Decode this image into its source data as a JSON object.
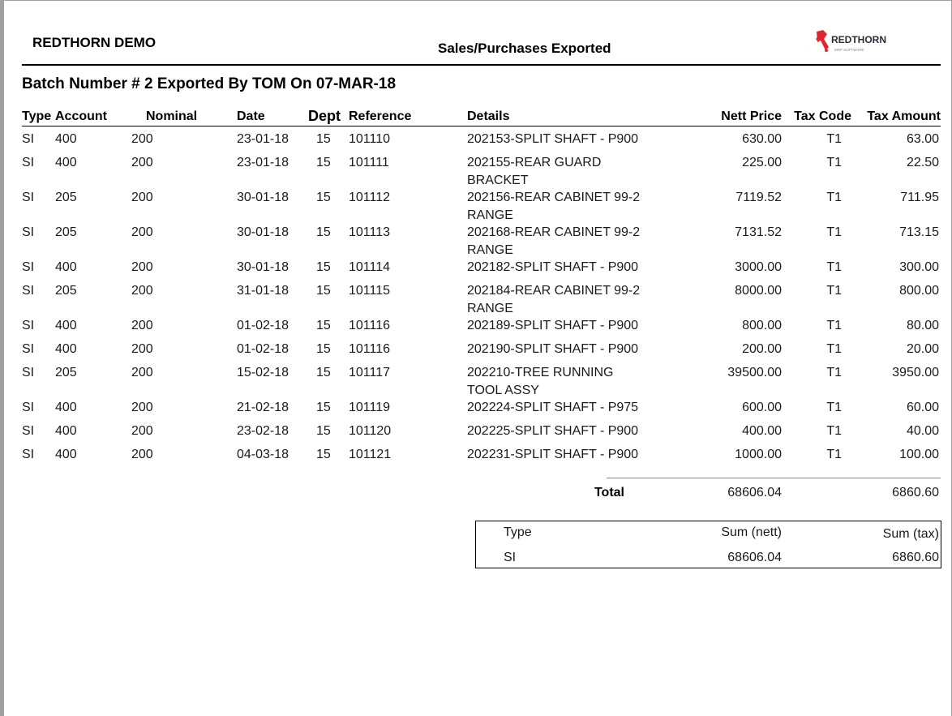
{
  "header": {
    "company": "REDTHORN DEMO",
    "report_title": "Sales/Purchases Exported",
    "logo_text": "REDTHORN",
    "logo_sub": "MRP SOFTWARE",
    "brand_color": "#e0262f"
  },
  "batch_title": "Batch Number # 2 Exported By TOM On 07-MAR-18",
  "columns": [
    "Type",
    "Account",
    "Nominal",
    "Date",
    "Dept",
    "Reference",
    "Details",
    "Nett Price",
    "Tax Code",
    "Tax Amount"
  ],
  "rows": [
    [
      "SI",
      "400",
      "200",
      "23-01-18",
      "15",
      "101110",
      "202153-SPLIT SHAFT - P900",
      "630.00",
      "T1",
      "63.00"
    ],
    [
      "SI",
      "400",
      "200",
      "23-01-18",
      "15",
      "101111",
      "202155-REAR GUARD BRACKET",
      "225.00",
      "T1",
      "22.50"
    ],
    [
      "SI",
      "205",
      "200",
      "30-01-18",
      "15",
      "101112",
      "202156-REAR CABINET 99-2 RANGE",
      "7119.52",
      "T1",
      "711.95"
    ],
    [
      "SI",
      "205",
      "200",
      "30-01-18",
      "15",
      "101113",
      "202168-REAR CABINET 99-2 RANGE",
      "7131.52",
      "T1",
      "713.15"
    ],
    [
      "SI",
      "400",
      "200",
      "30-01-18",
      "15",
      "101114",
      "202182-SPLIT SHAFT - P900",
      "3000.00",
      "T1",
      "300.00"
    ],
    [
      "SI",
      "205",
      "200",
      "31-01-18",
      "15",
      "101115",
      "202184-REAR CABINET 99-2 RANGE",
      "8000.00",
      "T1",
      "800.00"
    ],
    [
      "SI",
      "400",
      "200",
      "01-02-18",
      "15",
      "101116",
      "202189-SPLIT SHAFT - P900",
      "800.00",
      "T1",
      "80.00"
    ],
    [
      "SI",
      "400",
      "200",
      "01-02-18",
      "15",
      "101116",
      "202190-SPLIT SHAFT - P900",
      "200.00",
      "T1",
      "20.00"
    ],
    [
      "SI",
      "205",
      "200",
      "15-02-18",
      "15",
      "101117",
      "202210-TREE RUNNING TOOL ASSY",
      "39500.00",
      "T1",
      "3950.00"
    ],
    [
      "SI",
      "400",
      "200",
      "21-02-18",
      "15",
      "101119",
      "202224-SPLIT SHAFT - P975",
      "600.00",
      "T1",
      "60.00"
    ],
    [
      "SI",
      "400",
      "200",
      "23-02-18",
      "15",
      "101120",
      "202225-SPLIT SHAFT - P900",
      "400.00",
      "T1",
      "40.00"
    ],
    [
      "SI",
      "400",
      "200",
      "04-03-18",
      "15",
      "101121",
      "202231-SPLIT SHAFT - P900",
      "1000.00",
      "T1",
      "100.00"
    ]
  ],
  "total": {
    "label": "Total",
    "nett": "68606.04",
    "tax": "6860.60"
  },
  "summary": {
    "headers": [
      "Type",
      "Sum (nett)",
      "Sum (tax)"
    ],
    "row": [
      "SI",
      "68606.04",
      "6860.60"
    ]
  }
}
